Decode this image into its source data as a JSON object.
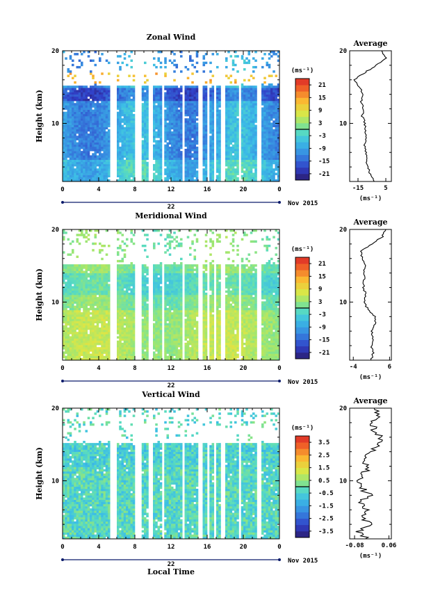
{
  "chart_data": [
    {
      "type": "heatmap",
      "title": "Zonal Wind",
      "ylabel": "Height (km)",
      "ylim": [
        2,
        20
      ],
      "yticks": [
        10,
        20
      ],
      "xlim": [
        0,
        24
      ],
      "xticks": [
        "0",
        "4",
        "8",
        "12",
        "16",
        "20",
        "0"
      ],
      "date_label": "22",
      "date_right": "Nov 2015",
      "colorbar": {
        "unit": "(ms⁻¹)",
        "ticks": [
          "21",
          "15",
          "9",
          "3",
          "-3",
          "-9",
          "-15",
          "-21"
        ],
        "range": [
          -24,
          24
        ]
      },
      "data_gaps_hours": [
        [
          5.3,
          6.1
        ],
        [
          8.1,
          8.7
        ],
        [
          9.4,
          9.9
        ],
        [
          10.9,
          11.3
        ],
        [
          13.2,
          13.5
        ],
        [
          15.0,
          15.4
        ],
        [
          15.9,
          16.2
        ],
        [
          16.8,
          17.1
        ],
        [
          17.6,
          18.0
        ],
        [
          18.4,
          18.6
        ],
        [
          19.4,
          19.7
        ],
        [
          21.5,
          21.9
        ]
      ],
      "average": {
        "title": "Average",
        "xlabel": "(ms⁻¹)",
        "xticks": [
          "-15",
          "5"
        ],
        "xlim": [
          -21,
          9
        ],
        "height_km": [
          2,
          3,
          4,
          5,
          6,
          7,
          8,
          9,
          10,
          11,
          12,
          13,
          14,
          15,
          16,
          17,
          18,
          19,
          20
        ],
        "values": [
          -3,
          -6,
          -8,
          -9,
          -9.5,
          -10,
          -9,
          -10,
          -10,
          -12,
          -11,
          -13,
          -11,
          -14,
          -18,
          -10,
          -2,
          5,
          2
        ]
      }
    },
    {
      "type": "heatmap",
      "title": "Meridional Wind",
      "ylabel": "Height (km)",
      "ylim": [
        2,
        20
      ],
      "yticks": [
        10,
        20
      ],
      "xlim": [
        0,
        24
      ],
      "xticks": [
        "0",
        "4",
        "8",
        "12",
        "16",
        "20",
        "0"
      ],
      "date_label": "22",
      "date_right": "Nov 2015",
      "colorbar": {
        "unit": "(ms⁻¹)",
        "ticks": [
          "21",
          "15",
          "9",
          "3",
          "-3",
          "-9",
          "-15",
          "-21"
        ],
        "range": [
          -24,
          24
        ]
      },
      "data_gaps_hours": [
        [
          5.3,
          6.1
        ],
        [
          8.1,
          8.7
        ],
        [
          9.4,
          9.9
        ],
        [
          10.9,
          11.3
        ],
        [
          13.2,
          13.5
        ],
        [
          15.0,
          15.4
        ],
        [
          15.9,
          16.2
        ],
        [
          16.8,
          17.1
        ],
        [
          17.6,
          18.0
        ],
        [
          18.4,
          18.6
        ],
        [
          19.4,
          19.7
        ],
        [
          21.5,
          21.9
        ]
      ],
      "average": {
        "title": "Average",
        "xlabel": "(ms⁻¹)",
        "xticks": [
          "-4",
          "6"
        ],
        "xlim": [
          -5,
          6.5
        ],
        "height_km": [
          2,
          3,
          4,
          5,
          6,
          7,
          8,
          9,
          10,
          11,
          12,
          13,
          14,
          15,
          16,
          17,
          18,
          19,
          20
        ],
        "values": [
          1,
          1.5,
          1,
          1.5,
          1,
          2,
          2,
          0,
          -1,
          -0.5,
          -1.2,
          -1,
          -1,
          -0.8,
          -1.5,
          -2,
          1,
          4,
          5
        ]
      }
    },
    {
      "type": "heatmap",
      "title": "Vertical Wind",
      "ylabel": "Height (km)",
      "xlabel": "Local Time",
      "ylim": [
        2,
        20
      ],
      "yticks": [
        10,
        20
      ],
      "xlim": [
        0,
        24
      ],
      "xticks": [
        "0",
        "4",
        "8",
        "12",
        "16",
        "20",
        "0"
      ],
      "date_label": "22",
      "date_right": "Nov 2015",
      "colorbar": {
        "unit": "(ms⁻¹)",
        "ticks": [
          "3.5",
          "2.5",
          "1.5",
          "0.5",
          "-0.5",
          "-1.5",
          "-2.5",
          "-3.5"
        ],
        "range": [
          -4,
          4
        ]
      },
      "data_gaps_hours": [
        [
          5.3,
          6.1
        ],
        [
          8.1,
          8.7
        ],
        [
          9.4,
          9.9
        ],
        [
          10.9,
          11.3
        ],
        [
          13.2,
          13.5
        ],
        [
          15.0,
          15.4
        ],
        [
          15.9,
          16.2
        ],
        [
          16.8,
          17.1
        ],
        [
          17.6,
          18.0
        ],
        [
          18.4,
          18.6
        ],
        [
          19.4,
          19.7
        ],
        [
          21.5,
          21.9
        ]
      ],
      "average": {
        "title": "Average",
        "xlabel": "(ms⁻¹)",
        "xticks": [
          "-0.08",
          "0.06"
        ],
        "xlim": [
          -0.1,
          0.07
        ],
        "height_km": [
          2,
          3,
          4,
          5,
          6,
          7,
          8,
          9,
          10,
          11,
          12,
          13,
          14,
          15,
          16,
          17,
          18,
          19,
          20
        ],
        "values": [
          -0.03,
          -0.06,
          -0.02,
          -0.05,
          -0.03,
          -0.06,
          -0.02,
          -0.05,
          -0.06,
          -0.04,
          -0.02,
          -0.05,
          -0.01,
          0.02,
          0.03,
          0.0,
          -0.01,
          0.02,
          0.0
        ]
      }
    }
  ]
}
